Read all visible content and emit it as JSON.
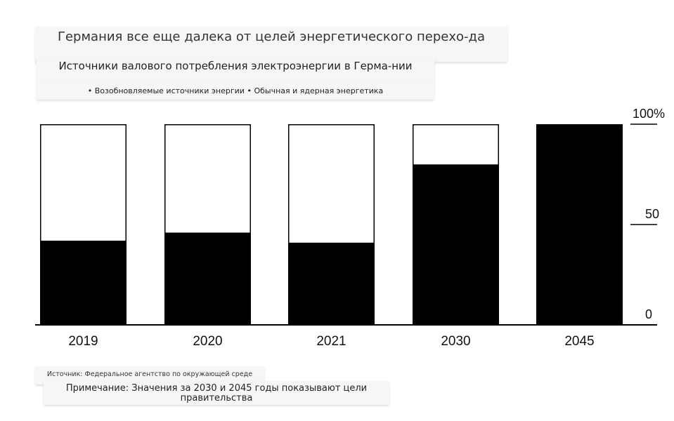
{
  "chart_data": {
    "type": "bar",
    "stacked": true,
    "title": "Германия все еще далека от целей энергетического перехо-да",
    "subtitle": "Источники валового потребления электроэнергии в Герма-нии",
    "legend": [
      "• Возобновляемые источники энергии",
      "• Обычная и ядерная энергетика"
    ],
    "categories": [
      "2019",
      "2020",
      "2021",
      "2030",
      "2045"
    ],
    "series": [
      {
        "name": "Возобновляемые источники энергии",
        "values": [
          42,
          46,
          41,
          80,
          100
        ],
        "color": "#000000"
      },
      {
        "name": "Обычная и ядерная энергетика",
        "values": [
          58,
          54,
          59,
          20,
          0
        ],
        "color": "#ffffff"
      }
    ],
    "y_ticks": [
      "0",
      "50",
      "100%"
    ],
    "ylim": [
      0,
      100
    ],
    "grid": false,
    "source": "Источник: Федеральное агентство по окружающей среде",
    "note": "Примечание: Значения за 2030 и 2045 годы показывают цели правительства"
  }
}
